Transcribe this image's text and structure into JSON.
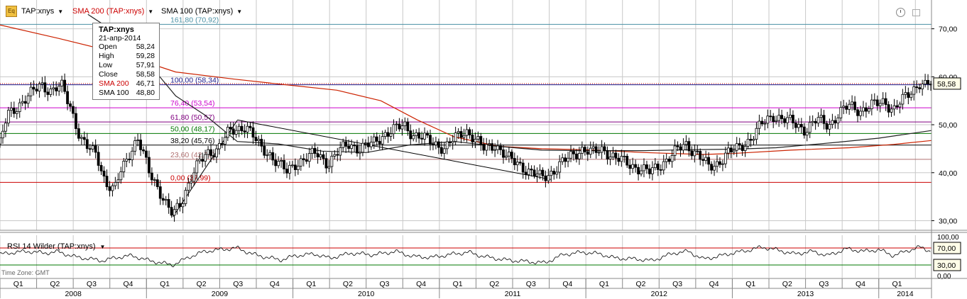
{
  "toolbar": {
    "main_label": "TAP:xnys",
    "sma200_label": "SMA 200 (TAP:xnys)",
    "sma100_label": "SMA 100 (TAP:xnys)",
    "eq_icon_text": "Eq"
  },
  "tooltip": {
    "title": "TAP:xnys",
    "date": "21-апр-2014",
    "rows": [
      {
        "label": "Open",
        "value": "58,24"
      },
      {
        "label": "High",
        "value": "59,28"
      },
      {
        "label": "Low",
        "value": "57,91"
      },
      {
        "label": "Close",
        "value": "58,58"
      },
      {
        "label": "SMA 200",
        "value": "46,71"
      },
      {
        "label": "SMA 100",
        "value": "48,80"
      }
    ]
  },
  "rsi_panel": {
    "label": "RSI 14 Wilder (TAP:xnys)"
  },
  "timezone": "Time Zone: GMT",
  "colors": {
    "price_up": "#ffffff",
    "price_down": "#000000",
    "sma200": "#cc2200",
    "sma100": "#222222",
    "grid": "#c8c8c8",
    "fib_161": "#4a90a4",
    "fib_100": "#1a1a8a",
    "fib_764": "#cc00cc",
    "fib_618": "#800080",
    "fib_500": "#007700",
    "fib_382": "#000000",
    "fib_236": "#b07070",
    "fib_0": "#cc0000",
    "rsi_line": "#000000",
    "rsi_70": "#cc0000",
    "rsi_30": "#007700"
  },
  "chart_data": [
    {
      "type": "candlestick",
      "title": "TAP:xnys",
      "ylim": [
        28,
        76
      ],
      "y_ticks": [
        30,
        40,
        50,
        60,
        70
      ],
      "y_tick_labels": [
        "30,00",
        "40,00",
        "50,00",
        "60,00",
        "70,00"
      ],
      "last_price_label": "58,58",
      "last_price": 58.58,
      "x_quarters": [
        "Q1",
        "Q2",
        "Q3",
        "Q4",
        "Q1",
        "Q2",
        "Q3",
        "Q4",
        "Q1",
        "Q2",
        "Q3",
        "Q4",
        "Q1",
        "Q2",
        "Q3",
        "Q4",
        "Q1",
        "Q2",
        "Q3",
        "Q4",
        "Q1",
        "Q2",
        "Q3",
        "Q4",
        "Q1"
      ],
      "x_years": [
        "2008",
        "2009",
        "2010",
        "2011",
        "2012",
        "2013",
        "2014"
      ],
      "x_start": 2008.0,
      "x_end": 2014.36,
      "fibonacci": [
        {
          "label": "161,80 (70,92)",
          "value": 70.92,
          "color_key": "fib_161"
        },
        {
          "label": "100,00 (58,34)",
          "value": 58.34,
          "color_key": "fib_100"
        },
        {
          "label": "76,40 (53,54)",
          "value": 53.54,
          "color_key": "fib_764"
        },
        {
          "label": "61,80 (50,57)",
          "value": 50.57,
          "color_key": "fib_618"
        },
        {
          "label": "50,00 (48,17)",
          "value": 48.17,
          "color_key": "fib_500"
        },
        {
          "label": "38,20 (45,76)",
          "value": 45.76,
          "color_key": "fib_382"
        },
        {
          "label": "23,60 (42,79)",
          "value": 42.79,
          "color_key": "fib_236"
        },
        {
          "label": "0,00 (37,99)",
          "value": 37.99,
          "color_key": "fib_0"
        }
      ],
      "price_path": [
        [
          2008.0,
          46
        ],
        [
          2008.05,
          52
        ],
        [
          2008.12,
          54
        ],
        [
          2008.2,
          56
        ],
        [
          2008.28,
          58.5
        ],
        [
          2008.35,
          57
        ],
        [
          2008.42,
          58
        ],
        [
          2008.48,
          54
        ],
        [
          2008.55,
          47
        ],
        [
          2008.6,
          45
        ],
        [
          2008.66,
          44
        ],
        [
          2008.72,
          38
        ],
        [
          2008.78,
          36
        ],
        [
          2008.82,
          40
        ],
        [
          2008.88,
          44
        ],
        [
          2008.94,
          47
        ],
        [
          2009.02,
          40
        ],
        [
          2009.08,
          37
        ],
        [
          2009.14,
          33
        ],
        [
          2009.18,
          31
        ],
        [
          2009.24,
          34
        ],
        [
          2009.3,
          39
        ],
        [
          2009.36,
          42
        ],
        [
          2009.42,
          44
        ],
        [
          2009.48,
          45
        ],
        [
          2009.55,
          48
        ],
        [
          2009.62,
          49
        ],
        [
          2009.68,
          50
        ],
        [
          2009.72,
          48
        ],
        [
          2009.78,
          45
        ],
        [
          2009.84,
          44
        ],
        [
          2009.9,
          42
        ],
        [
          2009.96,
          40
        ],
        [
          2010.02,
          42
        ],
        [
          2010.08,
          43
        ],
        [
          2010.16,
          44
        ],
        [
          2010.24,
          42
        ],
        [
          2010.3,
          44
        ],
        [
          2010.38,
          46
        ],
        [
          2010.46,
          45
        ],
        [
          2010.54,
          46
        ],
        [
          2010.62,
          48
        ],
        [
          2010.7,
          49
        ],
        [
          2010.76,
          50
        ],
        [
          2010.82,
          48
        ],
        [
          2010.9,
          47
        ],
        [
          2010.98,
          46
        ],
        [
          2011.04,
          45
        ],
        [
          2011.1,
          47
        ],
        [
          2011.18,
          49
        ],
        [
          2011.24,
          47
        ],
        [
          2011.3,
          45
        ],
        [
          2011.38,
          46
        ],
        [
          2011.46,
          43
        ],
        [
          2011.54,
          42
        ],
        [
          2011.62,
          40
        ],
        [
          2011.7,
          39
        ],
        [
          2011.76,
          40
        ],
        [
          2011.84,
          42
        ],
        [
          2011.92,
          44
        ],
        [
          2011.98,
          45
        ],
        [
          2012.04,
          44
        ],
        [
          2012.12,
          45
        ],
        [
          2012.2,
          43
        ],
        [
          2012.28,
          42
        ],
        [
          2012.36,
          41
        ],
        [
          2012.44,
          40
        ],
        [
          2012.52,
          42
        ],
        [
          2012.6,
          44
        ],
        [
          2012.68,
          46
        ],
        [
          2012.76,
          44
        ],
        [
          2012.84,
          41
        ],
        [
          2012.9,
          42
        ],
        [
          2012.96,
          44
        ],
        [
          2013.04,
          45
        ],
        [
          2013.12,
          47
        ],
        [
          2013.2,
          50
        ],
        [
          2013.28,
          52
        ],
        [
          2013.36,
          51
        ],
        [
          2013.44,
          50
        ],
        [
          2013.5,
          49
        ],
        [
          2013.58,
          51
        ],
        [
          2013.66,
          50
        ],
        [
          2013.72,
          52
        ],
        [
          2013.8,
          54
        ],
        [
          2013.88,
          53
        ],
        [
          2013.96,
          54
        ],
        [
          2014.04,
          55
        ],
        [
          2014.1,
          53
        ],
        [
          2014.16,
          55
        ],
        [
          2014.22,
          57
        ],
        [
          2014.28,
          58.8
        ],
        [
          2014.32,
          58
        ],
        [
          2014.36,
          58.58
        ]
      ],
      "sma200_path": [
        [
          2008.0,
          70.8
        ],
        [
          2008.4,
          68
        ],
        [
          2008.8,
          65
        ],
        [
          2009.2,
          61
        ],
        [
          2009.6,
          59.5
        ],
        [
          2009.9,
          58.5
        ],
        [
          2010.3,
          57.2
        ],
        [
          2010.6,
          55
        ],
        [
          2010.85,
          51
        ],
        [
          2011.1,
          47.5
        ],
        [
          2011.4,
          45.5
        ],
        [
          2011.7,
          45
        ],
        [
          2012.0,
          44.8
        ],
        [
          2012.4,
          44.2
        ],
        [
          2012.8,
          43.8
        ],
        [
          2013.0,
          44
        ],
        [
          2013.4,
          44.7
        ],
        [
          2013.8,
          45.2
        ],
        [
          2014.1,
          45.9
        ],
        [
          2014.36,
          46.71
        ]
      ],
      "sma100_path": [
        [
          2008.6,
          73
        ],
        [
          2008.9,
          67
        ],
        [
          2009.2,
          56
        ],
        [
          2009.4,
          52
        ],
        [
          2009.62,
          46.5
        ],
        [
          2009.9,
          46
        ],
        [
          2010.2,
          44.5
        ],
        [
          2010.5,
          44.2
        ],
        [
          2010.8,
          45.8
        ],
        [
          2011.1,
          46.5
        ],
        [
          2011.4,
          45.5
        ],
        [
          2011.7,
          44.7
        ],
        [
          2012.0,
          44.6
        ],
        [
          2012.4,
          44.6
        ],
        [
          2012.7,
          44.8
        ],
        [
          2013.0,
          44.9
        ],
        [
          2013.3,
          45.2
        ],
        [
          2013.7,
          46.3
        ],
        [
          2014.0,
          47.2
        ],
        [
          2014.36,
          48.8
        ]
      ],
      "trendlines": [
        [
          [
            2009.18,
            30.8
          ],
          [
            2009.62,
            50.9
          ]
        ],
        [
          [
            2009.62,
            51.0
          ],
          [
            2011.76,
            38.6
          ]
        ]
      ]
    },
    {
      "type": "line",
      "title": "RSI 14 Wilder (TAP:xnys)",
      "ylim": [
        0,
        100
      ],
      "y_tick_labels": [
        "100,00",
        "0,00"
      ],
      "level_labels": [
        "70,00",
        "30,00"
      ],
      "levels": [
        70,
        30
      ],
      "rsi_path": [
        [
          2008.0,
          55
        ],
        [
          2008.1,
          60
        ],
        [
          2008.2,
          62
        ],
        [
          2008.3,
          58
        ],
        [
          2008.4,
          61
        ],
        [
          2008.5,
          50
        ],
        [
          2008.6,
          45
        ],
        [
          2008.7,
          40
        ],
        [
          2008.8,
          48
        ],
        [
          2008.9,
          52
        ],
        [
          2009.0,
          42
        ],
        [
          2009.1,
          35
        ],
        [
          2009.18,
          30
        ],
        [
          2009.3,
          50
        ],
        [
          2009.4,
          62
        ],
        [
          2009.5,
          66
        ],
        [
          2009.62,
          70
        ],
        [
          2009.72,
          56
        ],
        [
          2009.82,
          48
        ],
        [
          2009.92,
          42
        ],
        [
          2010.02,
          52
        ],
        [
          2010.15,
          56
        ],
        [
          2010.25,
          46
        ],
        [
          2010.4,
          58
        ],
        [
          2010.55,
          54
        ],
        [
          2010.7,
          62
        ],
        [
          2010.82,
          50
        ],
        [
          2010.95,
          48
        ],
        [
          2011.1,
          56
        ],
        [
          2011.2,
          60
        ],
        [
          2011.3,
          50
        ],
        [
          2011.45,
          42
        ],
        [
          2011.6,
          38
        ],
        [
          2011.72,
          35
        ],
        [
          2011.85,
          55
        ],
        [
          2011.98,
          60
        ],
        [
          2012.1,
          56
        ],
        [
          2012.2,
          46
        ],
        [
          2012.35,
          44
        ],
        [
          2012.45,
          40
        ],
        [
          2012.6,
          58
        ],
        [
          2012.7,
          62
        ],
        [
          2012.8,
          44
        ],
        [
          2012.9,
          50
        ],
        [
          2013.0,
          58
        ],
        [
          2013.1,
          64
        ],
        [
          2013.2,
          72
        ],
        [
          2013.3,
          66
        ],
        [
          2013.42,
          56
        ],
        [
          2013.55,
          62
        ],
        [
          2013.65,
          52
        ],
        [
          2013.78,
          68
        ],
        [
          2013.9,
          62
        ],
        [
          2014.0,
          66
        ],
        [
          2014.1,
          52
        ],
        [
          2014.2,
          64
        ],
        [
          2014.28,
          72
        ],
        [
          2014.36,
          62
        ]
      ]
    }
  ]
}
